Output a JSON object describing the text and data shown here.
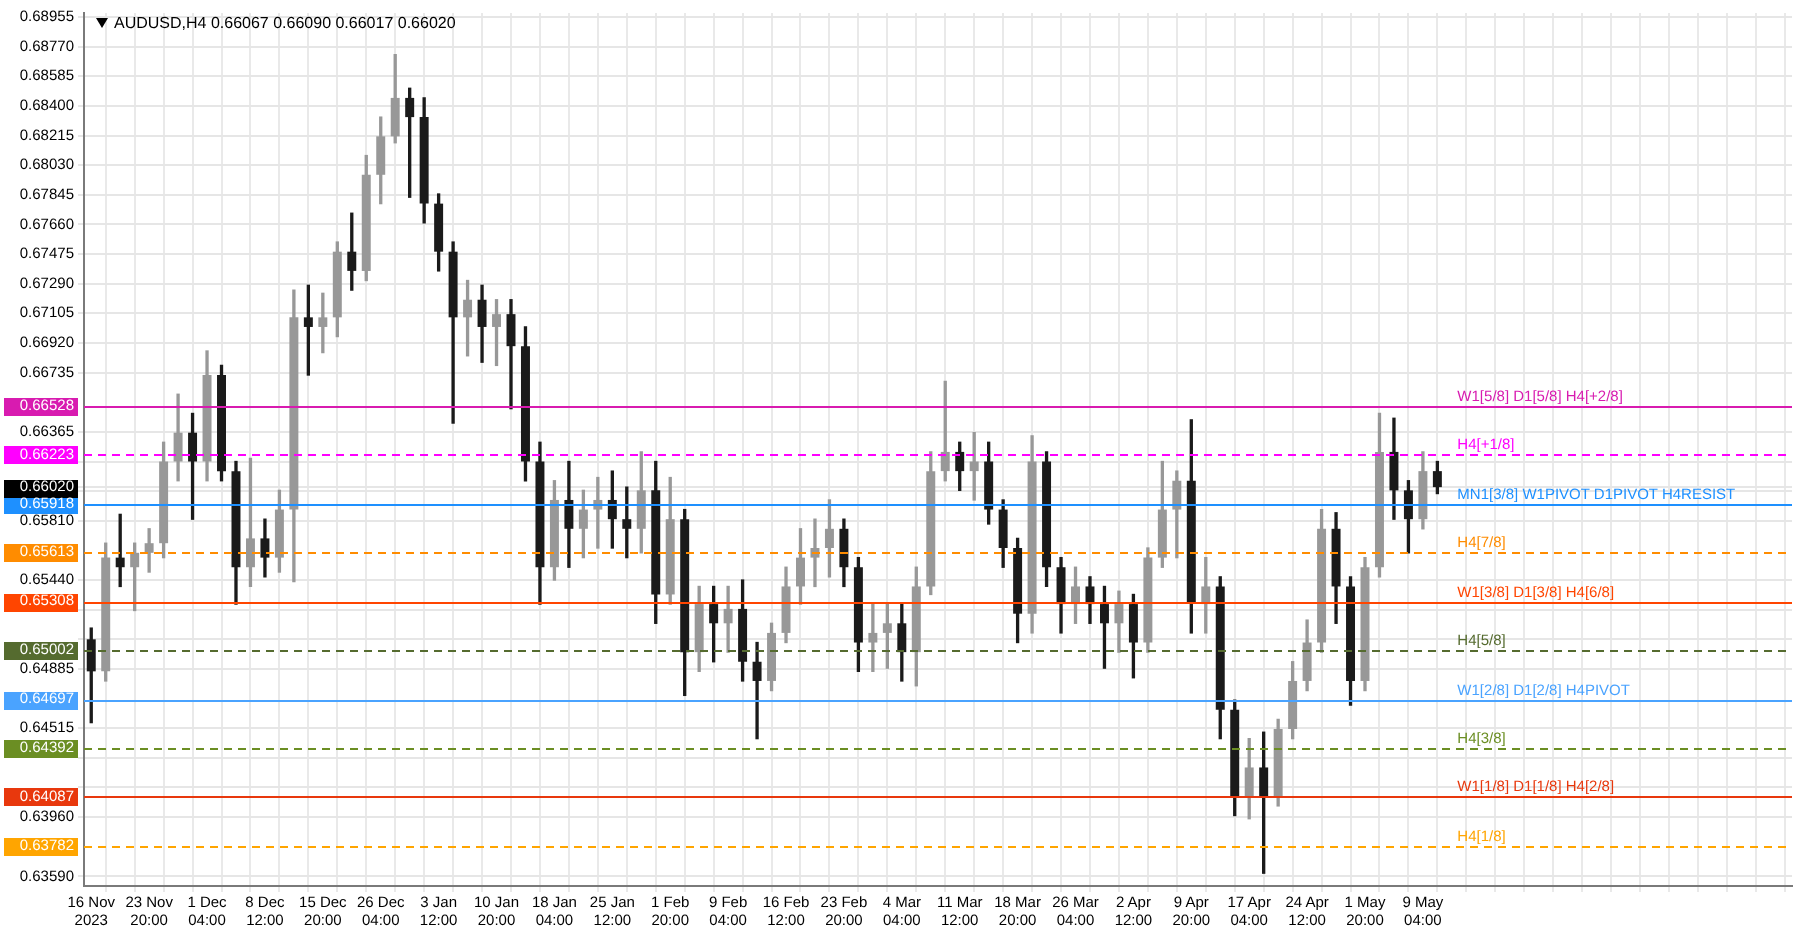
{
  "chart_data": {
    "type": "candlestick",
    "title": "AUDUSD,H4 0.66067 0.66090 0.66017 0.66020",
    "categories": [
      "16 Nov 2023",
      null,
      null,
      null,
      "23 Nov 20:00",
      null,
      null,
      null,
      "1 Dec 04:00",
      null,
      null,
      null,
      "8 Dec 12:00",
      null,
      null,
      null,
      "15 Dec 20:00",
      null,
      null,
      null,
      "26 Dec 04:00",
      null,
      null,
      null,
      "3 Jan 12:00",
      null,
      null,
      null,
      "10 Jan 20:00",
      null,
      null,
      null,
      "18 Jan 04:00",
      null,
      null,
      null,
      "25 Jan 12:00",
      null,
      null,
      null,
      "1 Feb 20:00",
      null,
      null,
      null,
      "9 Feb 04:00",
      null,
      null,
      null,
      "16 Feb 12:00",
      null,
      null,
      null,
      "23 Feb 20:00",
      null,
      null,
      null,
      "4 Mar 04:00",
      null,
      null,
      null,
      "11 Mar 12:00",
      null,
      null,
      null,
      "18 Mar 20:00",
      null,
      null,
      null,
      "26 Mar 04:00",
      null,
      null,
      null,
      "2 Apr 12:00",
      null,
      null,
      null,
      "9 Apr 20:00",
      null,
      null,
      null,
      "17 Apr 04:00",
      null,
      null,
      null,
      "24 Apr 12:00",
      null,
      null,
      null,
      "1 May 20:00",
      null,
      null,
      null,
      "9 May 04:00",
      null
    ],
    "ohlc": [
      [
        0.6507,
        0.6514,
        0.6455,
        0.6487
      ],
      [
        0.6487,
        0.6567,
        0.6481,
        0.6558
      ],
      [
        0.6558,
        0.6585,
        0.654,
        0.6552
      ],
      [
        0.6552,
        0.6567,
        0.6525,
        0.6561
      ],
      [
        0.6561,
        0.6576,
        0.6549,
        0.6567
      ],
      [
        0.6567,
        0.663,
        0.6558,
        0.6618
      ],
      [
        0.6618,
        0.666,
        0.6606,
        0.6636
      ],
      [
        0.6636,
        0.6648,
        0.6582,
        0.6618
      ],
      [
        0.6618,
        0.6687,
        0.6606,
        0.6672
      ],
      [
        0.6672,
        0.6678,
        0.6606,
        0.6612
      ],
      [
        0.6612,
        0.6618,
        0.6529,
        0.6552
      ],
      [
        0.6552,
        0.662,
        0.654,
        0.657
      ],
      [
        0.657,
        0.6582,
        0.6546,
        0.6558
      ],
      [
        0.6558,
        0.66,
        0.6549,
        0.6588
      ],
      [
        0.6588,
        0.6725,
        0.6543,
        0.6708
      ],
      [
        0.6708,
        0.6728,
        0.6672,
        0.6702
      ],
      [
        0.6702,
        0.6723,
        0.6686,
        0.6708
      ],
      [
        0.6708,
        0.6755,
        0.6696,
        0.6749
      ],
      [
        0.6749,
        0.6773,
        0.6725,
        0.6737
      ],
      [
        0.6737,
        0.6809,
        0.6731,
        0.6797
      ],
      [
        0.6797,
        0.6833,
        0.6779,
        0.6821
      ],
      [
        0.6821,
        0.6872,
        0.6817,
        0.6845
      ],
      [
        0.6845,
        0.6851,
        0.6783,
        0.6833
      ],
      [
        0.6833,
        0.6845,
        0.6767,
        0.6779
      ],
      [
        0.6779,
        0.6785,
        0.6737,
        0.6749
      ],
      [
        0.6749,
        0.6755,
        0.6642,
        0.6708
      ],
      [
        0.6708,
        0.6731,
        0.6684,
        0.6719
      ],
      [
        0.6719,
        0.6728,
        0.668,
        0.6702
      ],
      [
        0.6702,
        0.6719,
        0.6678,
        0.671
      ],
      [
        0.671,
        0.6719,
        0.6651,
        0.669
      ],
      [
        0.669,
        0.6702,
        0.6606,
        0.6618
      ],
      [
        0.6618,
        0.663,
        0.6529,
        0.6552
      ],
      [
        0.6552,
        0.6606,
        0.6544,
        0.6594
      ],
      [
        0.6594,
        0.6618,
        0.6552,
        0.6576
      ],
      [
        0.6576,
        0.66,
        0.6558,
        0.6588
      ],
      [
        0.6588,
        0.6608,
        0.6564,
        0.6594
      ],
      [
        0.6594,
        0.6612,
        0.6564,
        0.6582
      ],
      [
        0.6582,
        0.6602,
        0.6558,
        0.6576
      ],
      [
        0.6576,
        0.6624,
        0.6561,
        0.66
      ],
      [
        0.66,
        0.6618,
        0.6517,
        0.6535
      ],
      [
        0.6535,
        0.6608,
        0.6529,
        0.6582
      ],
      [
        0.6582,
        0.6588,
        0.6472,
        0.6499
      ],
      [
        0.6499,
        0.654,
        0.6487,
        0.6529
      ],
      [
        0.6529,
        0.654,
        0.6493,
        0.6517
      ],
      [
        0.6517,
        0.654,
        0.6499,
        0.6526
      ],
      [
        0.6526,
        0.6544,
        0.6481,
        0.6493
      ],
      [
        0.6493,
        0.6505,
        0.6445,
        0.6481
      ],
      [
        0.6481,
        0.6517,
        0.6475,
        0.6511
      ],
      [
        0.6511,
        0.6552,
        0.6505,
        0.654
      ],
      [
        0.654,
        0.6576,
        0.6529,
        0.6558
      ],
      [
        0.6558,
        0.6582,
        0.654,
        0.6564
      ],
      [
        0.6564,
        0.6594,
        0.6546,
        0.6576
      ],
      [
        0.6576,
        0.6582,
        0.654,
        0.6552
      ],
      [
        0.6552,
        0.6558,
        0.6487,
        0.6505
      ],
      [
        0.6505,
        0.6529,
        0.6487,
        0.6511
      ],
      [
        0.6511,
        0.6529,
        0.6489,
        0.6517
      ],
      [
        0.6517,
        0.6529,
        0.6481,
        0.6499
      ],
      [
        0.6499,
        0.6552,
        0.6478,
        0.654
      ],
      [
        0.654,
        0.6624,
        0.6535,
        0.6612
      ],
      [
        0.6612,
        0.6668,
        0.6606,
        0.6624
      ],
      [
        0.6624,
        0.663,
        0.66,
        0.6612
      ],
      [
        0.6612,
        0.6636,
        0.6594,
        0.6618
      ],
      [
        0.6618,
        0.663,
        0.6579,
        0.6588
      ],
      [
        0.6588,
        0.6594,
        0.6552,
        0.6564
      ],
      [
        0.6564,
        0.657,
        0.6505,
        0.6523
      ],
      [
        0.6523,
        0.6634,
        0.6511,
        0.6618
      ],
      [
        0.6618,
        0.6624,
        0.654,
        0.6552
      ],
      [
        0.6552,
        0.6558,
        0.6511,
        0.6529
      ],
      [
        0.6529,
        0.6552,
        0.6517,
        0.654
      ],
      [
        0.654,
        0.6546,
        0.6517,
        0.6529
      ],
      [
        0.6529,
        0.654,
        0.6489,
        0.6517
      ],
      [
        0.6517,
        0.6537,
        0.6499,
        0.6529
      ],
      [
        0.6529,
        0.6535,
        0.6483,
        0.6505
      ],
      [
        0.6505,
        0.6564,
        0.6499,
        0.6558
      ],
      [
        0.6558,
        0.6618,
        0.6552,
        0.6588
      ],
      [
        0.6588,
        0.6612,
        0.6558,
        0.6606
      ],
      [
        0.6606,
        0.6644,
        0.6511,
        0.6529
      ],
      [
        0.6529,
        0.6558,
        0.6511,
        0.654
      ],
      [
        0.654,
        0.6546,
        0.6445,
        0.6463
      ],
      [
        0.6463,
        0.6469,
        0.6397,
        0.6409
      ],
      [
        0.6409,
        0.6445,
        0.6395,
        0.6427
      ],
      [
        0.6427,
        0.6449,
        0.6361,
        0.6409
      ],
      [
        0.6409,
        0.6457,
        0.6403,
        0.6451
      ],
      [
        0.6451,
        0.6493,
        0.6445,
        0.6481
      ],
      [
        0.6481,
        0.6519,
        0.6475,
        0.6505
      ],
      [
        0.6505,
        0.6588,
        0.6499,
        0.6576
      ],
      [
        0.6576,
        0.6586,
        0.6517,
        0.654
      ],
      [
        0.654,
        0.6546,
        0.6466,
        0.6481
      ],
      [
        0.6481,
        0.6558,
        0.6475,
        0.6552
      ],
      [
        0.6552,
        0.6648,
        0.6546,
        0.6624
      ],
      [
        0.6624,
        0.6645,
        0.6582,
        0.66
      ],
      [
        0.66,
        0.6606,
        0.6561,
        0.6582
      ],
      [
        0.6582,
        0.6624,
        0.6576,
        0.6612
      ],
      [
        0.6612,
        0.6618,
        0.6598,
        0.6602
      ]
    ],
    "colors": [
      "#1a1a1a",
      "#989898",
      "#1a1a1a",
      "#989898",
      "#989898",
      "#989898",
      "#989898",
      "#1a1a1a",
      "#989898",
      "#1a1a1a",
      "#1a1a1a",
      "#989898",
      "#1a1a1a",
      "#989898",
      "#989898",
      "#1a1a1a",
      "#989898",
      "#989898",
      "#1a1a1a",
      "#989898",
      "#989898",
      "#989898",
      "#1a1a1a",
      "#1a1a1a",
      "#1a1a1a",
      "#1a1a1a",
      "#989898",
      "#1a1a1a",
      "#989898",
      "#1a1a1a",
      "#1a1a1a",
      "#1a1a1a",
      "#989898",
      "#1a1a1a",
      "#989898",
      "#989898",
      "#1a1a1a",
      "#1a1a1a",
      "#989898",
      "#1a1a1a",
      "#989898",
      "#1a1a1a",
      "#989898",
      "#1a1a1a",
      "#989898",
      "#1a1a1a",
      "#1a1a1a",
      "#989898",
      "#989898",
      "#989898",
      "#989898",
      "#989898",
      "#1a1a1a",
      "#1a1a1a",
      "#989898",
      "#989898",
      "#1a1a1a",
      "#989898",
      "#989898",
      "#989898",
      "#1a1a1a",
      "#989898",
      "#1a1a1a",
      "#1a1a1a",
      "#1a1a1a",
      "#989898",
      "#1a1a1a",
      "#1a1a1a",
      "#989898",
      "#1a1a1a",
      "#1a1a1a",
      "#989898",
      "#1a1a1a",
      "#989898",
      "#989898",
      "#989898",
      "#1a1a1a",
      "#989898",
      "#1a1a1a",
      "#1a1a1a",
      "#989898",
      "#1a1a1a",
      "#989898",
      "#989898",
      "#989898",
      "#989898",
      "#1a1a1a",
      "#1a1a1a",
      "#989898",
      "#989898",
      "#1a1a1a",
      "#1a1a1a",
      "#989898",
      "#1a1a1a"
    ],
    "ylim": [
      0.6353,
      0.6898
    ],
    "yticks": [
      {
        "value": 0.6359,
        "label": "0.63590"
      },
      {
        "value": 0.63782,
        "label": "0.63782"
      },
      {
        "value": 0.6396,
        "label": "0.63960"
      },
      {
        "value": 0.64087,
        "label": "0.64087"
      },
      {
        "value": 0.64145,
        "label": null
      },
      {
        "value": 0.6433,
        "label": null
      },
      {
        "value": 0.64392,
        "label": "0.64392"
      },
      {
        "value": 0.64515,
        "label": "0.64515"
      },
      {
        "value": 0.64697,
        "label": "0.64697"
      },
      {
        "value": 0.64885,
        "label": "0.64885"
      },
      {
        "value": 0.65002,
        "label": "0.65002"
      },
      {
        "value": 0.6507,
        "label": null
      },
      {
        "value": 0.65255,
        "label": null
      },
      {
        "value": 0.65308,
        "label": "0.65308"
      },
      {
        "value": 0.6544,
        "label": "0.65440"
      },
      {
        "value": 0.65613,
        "label": "0.65613"
      },
      {
        "value": 0.6581,
        "label": "0.65810"
      },
      {
        "value": 0.65918,
        "label": "0.65918"
      },
      {
        "value": 0.65995,
        "label": null
      },
      {
        "value": 0.6602,
        "label": "0.66020"
      },
      {
        "value": 0.6618,
        "label": null
      },
      {
        "value": 0.66223,
        "label": "0.66223"
      },
      {
        "value": 0.66365,
        "label": "0.66365"
      },
      {
        "value": 0.66528,
        "label": "0.66528"
      },
      {
        "value": 0.66735,
        "label": "0.66735"
      },
      {
        "value": 0.6692,
        "label": "0.66920"
      },
      {
        "value": 0.67105,
        "label": "0.67105"
      },
      {
        "value": 0.6729,
        "label": "0.67290"
      },
      {
        "value": 0.67475,
        "label": "0.67475"
      },
      {
        "value": 0.6766,
        "label": "0.67660"
      },
      {
        "value": 0.67845,
        "label": "0.67845"
      },
      {
        "value": 0.6803,
        "label": "0.68030"
      },
      {
        "value": 0.68215,
        "label": "0.68215"
      },
      {
        "value": 0.684,
        "label": "0.68400"
      },
      {
        "value": 0.68585,
        "label": "0.68585"
      },
      {
        "value": 0.6877,
        "label": "0.68770"
      },
      {
        "value": 0.68955,
        "label": "0.68955"
      }
    ],
    "grid": true,
    "ref_lines": [
      {
        "axis": "y",
        "value": 0.66528,
        "label": "W1[5/8] D1[5/8] H4[+2/8]",
        "color": "#d81bb0",
        "line_style": "solid"
      },
      {
        "axis": "y",
        "value": 0.66223,
        "label": "H4[+1/8]",
        "color": "#ff00ff",
        "line_style": "dashed"
      },
      {
        "axis": "y",
        "value": 0.65918,
        "label": "MN1[3/8] W1PIVOT D1PIVOT H4RESIST",
        "color": "#1e90ff",
        "line_style": "solid"
      },
      {
        "axis": "y",
        "value": 0.65613,
        "label": "H4[7/8]",
        "color": "#ff8c00",
        "line_style": "dashed"
      },
      {
        "axis": "y",
        "value": 0.65308,
        "label": "W1[3/8] D1[3/8] H4[6/8]",
        "color": "#ff4500",
        "line_style": "solid"
      },
      {
        "axis": "y",
        "value": 0.65002,
        "label": "H4[5/8]",
        "color": "#556b2f",
        "line_style": "dashed"
      },
      {
        "axis": "y",
        "value": 0.64697,
        "label": "W1[2/8] D1[2/8] H4PIVOT",
        "color": "#4aa3ff",
        "line_style": "solid"
      },
      {
        "axis": "y",
        "value": 0.64392,
        "label": "H4[3/8]",
        "color": "#6b8e23",
        "line_style": "dashed"
      },
      {
        "axis": "y",
        "value": 0.64087,
        "label": "W1[1/8] D1[1/8] H4[2/8]",
        "color": "#e8380d",
        "line_style": "solid"
      },
      {
        "axis": "y",
        "value": 0.63782,
        "label": "H4[1/8]",
        "color": "#ffa500",
        "line_style": "dashed"
      }
    ]
  }
}
